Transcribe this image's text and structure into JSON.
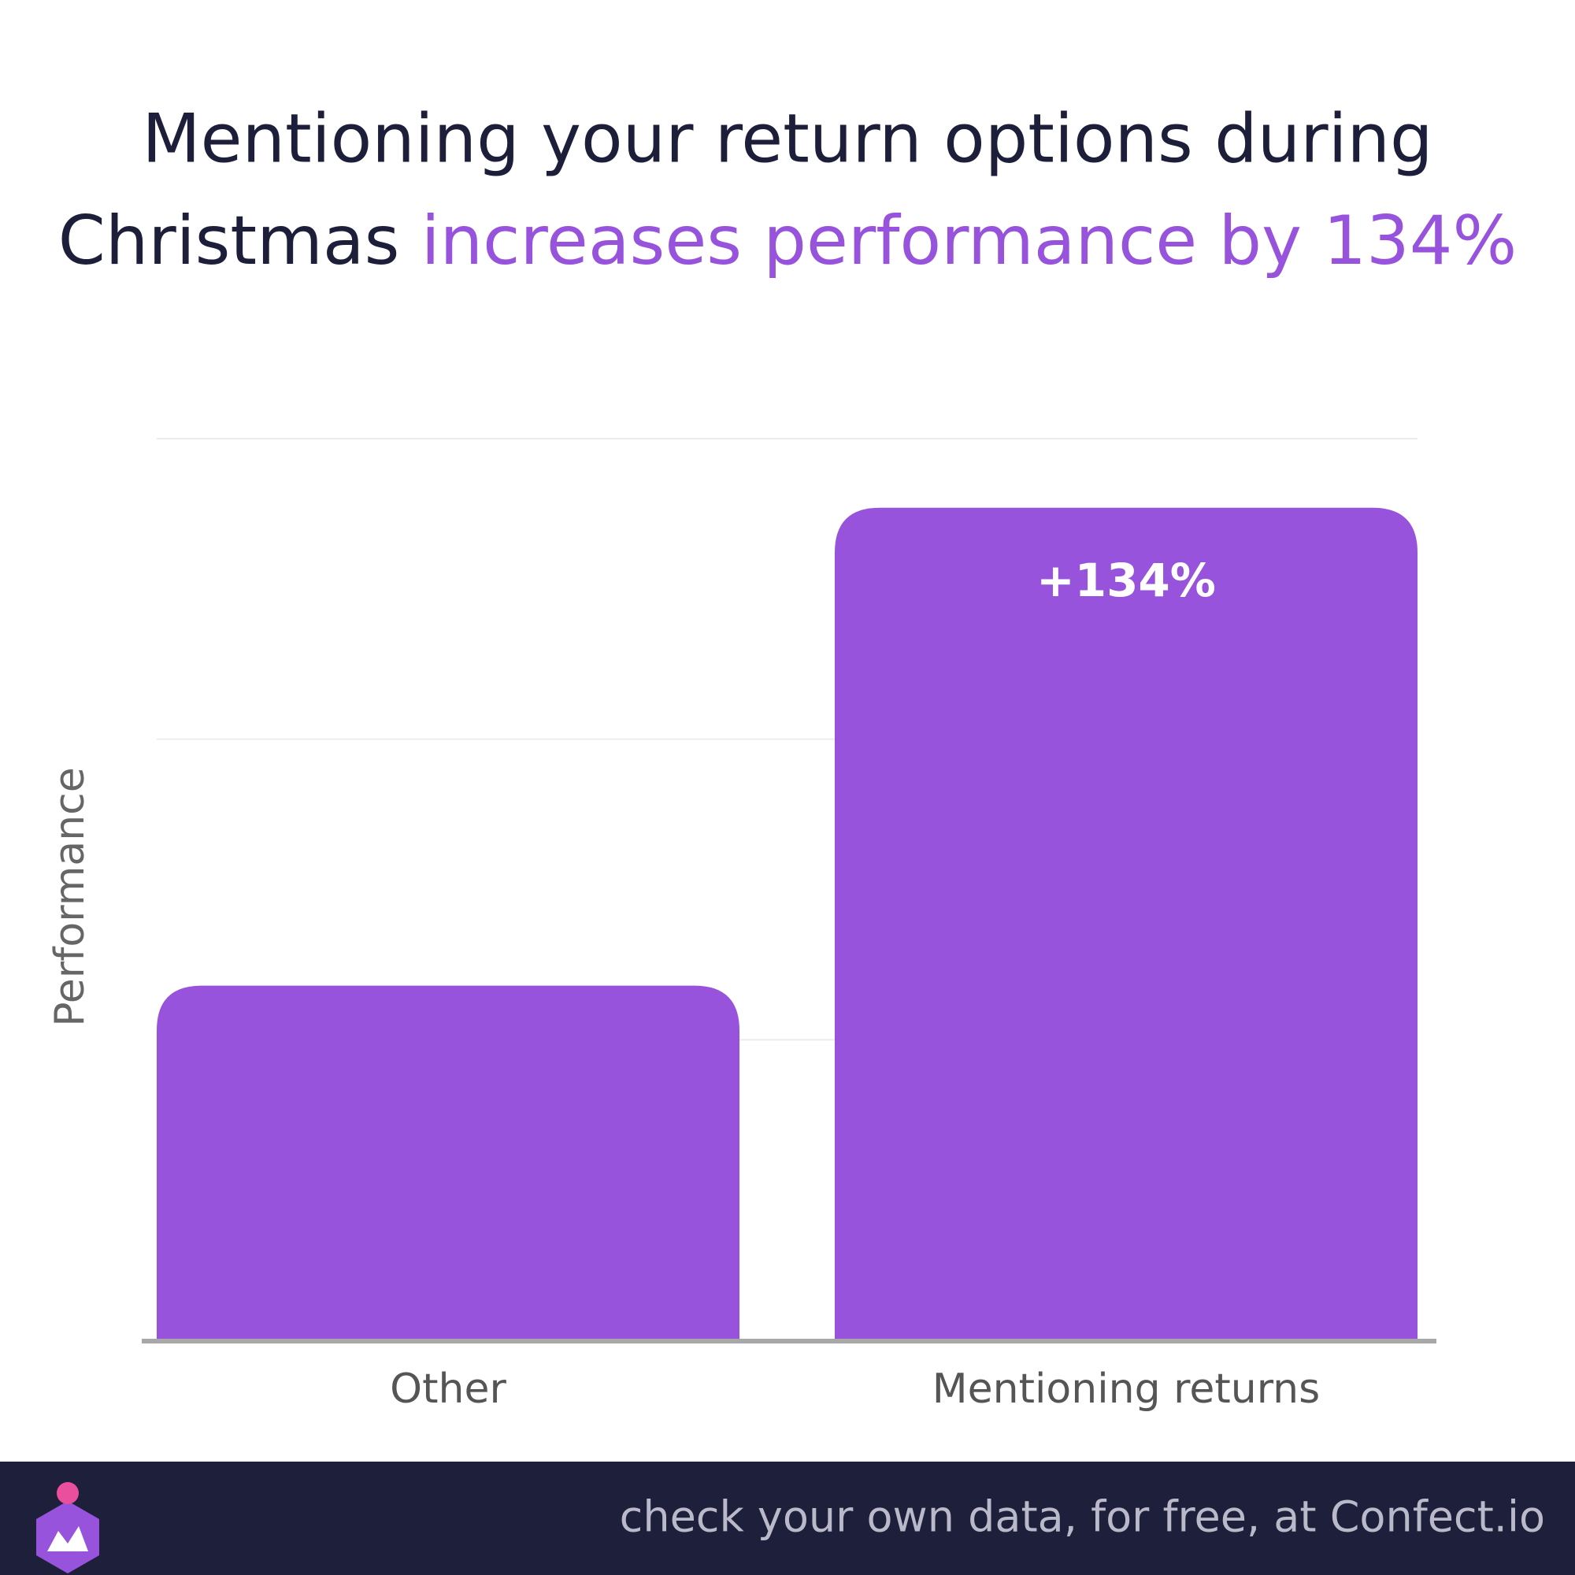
{
  "chart_data": {
    "type": "bar",
    "title": [
      "Mentioning your return options during",
      "Christmas",
      "increases performance by 134%"
    ],
    "title_highlight_color": "#9853dc",
    "y_label": "Performance",
    "categories": [
      "Other",
      "Mentioning returns"
    ],
    "values": [
      1.18,
      2.77
    ],
    "color": "#9853dc",
    "annotation": "+134%",
    "ylim": [
      0,
      3
    ],
    "yticks": [
      0,
      1,
      2,
      3
    ],
    "grid": true,
    "footer": "check your own data, for free, at Confect.io"
  }
}
